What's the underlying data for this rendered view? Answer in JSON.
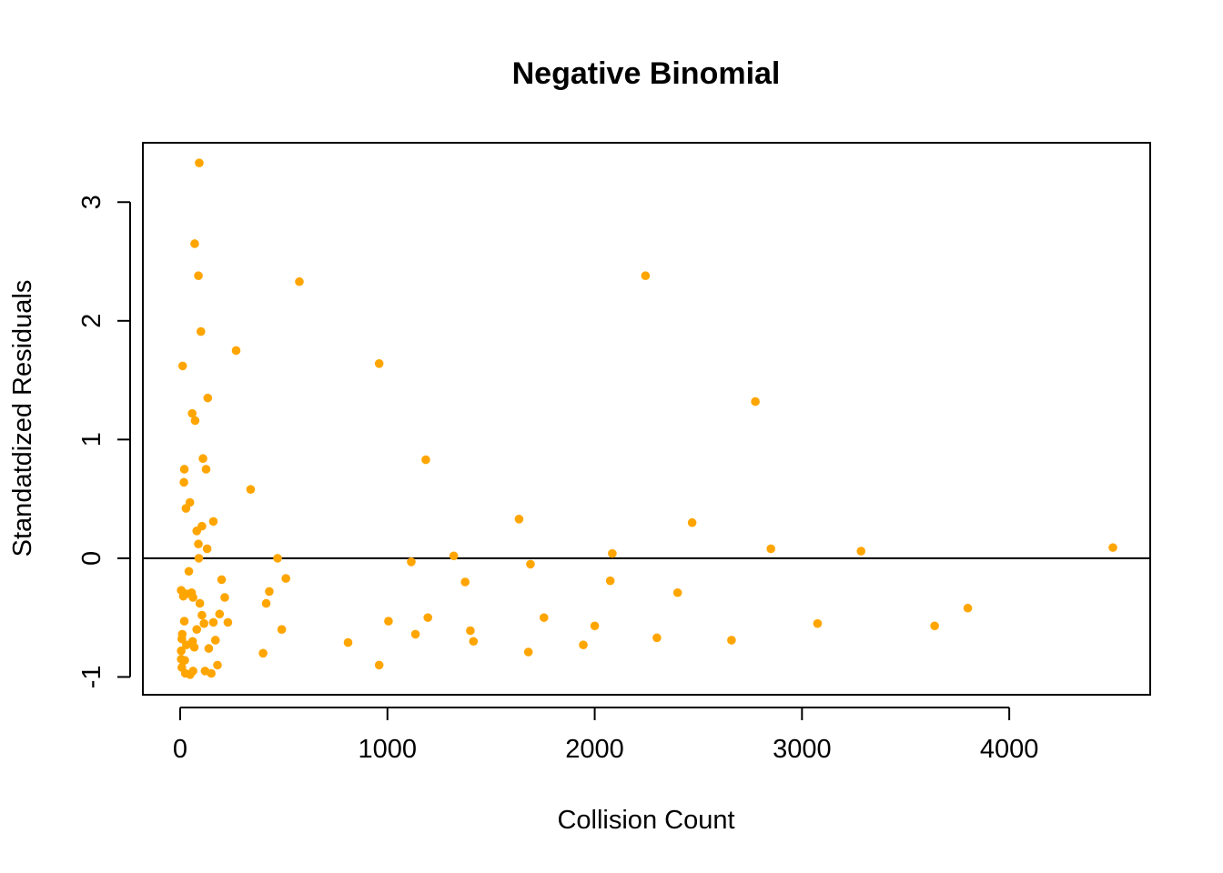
{
  "chart_data": {
    "type": "scatter",
    "title": "Negative Binomial",
    "xlabel": "Collision Count",
    "ylabel": "Standatdized Residuals",
    "xlim": [
      -180,
      4680
    ],
    "ylim": [
      -1.15,
      3.5
    ],
    "x_ticks": [
      0,
      1000,
      2000,
      3000,
      4000
    ],
    "y_ticks": [
      -1,
      0,
      1,
      2,
      3
    ],
    "x_tick_labels": [
      "0",
      "1000",
      "2000",
      "3000",
      "4000"
    ],
    "y_tick_labels": [
      "-1",
      "0",
      "1",
      "2",
      "3"
    ],
    "reference_line_y": 0,
    "point_color": "#FFA500",
    "series": [
      {
        "points": [
          [
            92,
            3.33
          ],
          [
            70,
            2.65
          ],
          [
            88,
            2.38
          ],
          [
            100,
            1.91
          ],
          [
            12,
            1.62
          ],
          [
            133,
            1.35
          ],
          [
            58,
            1.22
          ],
          [
            72,
            1.16
          ],
          [
            110,
            0.84
          ],
          [
            125,
            0.75
          ],
          [
            20,
            0.75
          ],
          [
            18,
            0.64
          ],
          [
            47,
            0.47
          ],
          [
            28,
            0.42
          ],
          [
            160,
            0.31
          ],
          [
            105,
            0.27
          ],
          [
            80,
            0.23
          ],
          [
            88,
            0.12
          ],
          [
            130,
            0.08
          ],
          [
            90,
            0.0
          ],
          [
            42,
            -0.11
          ],
          [
            5,
            -0.27
          ],
          [
            30,
            -0.3
          ],
          [
            55,
            -0.29
          ],
          [
            62,
            -0.33
          ],
          [
            15,
            -0.32
          ],
          [
            95,
            -0.38
          ],
          [
            105,
            -0.48
          ],
          [
            20,
            -0.53
          ],
          [
            115,
            -0.55
          ],
          [
            160,
            -0.54
          ],
          [
            80,
            -0.6
          ],
          [
            10,
            -0.64
          ],
          [
            8,
            -0.68
          ],
          [
            60,
            -0.7
          ],
          [
            170,
            -0.69
          ],
          [
            30,
            -0.73
          ],
          [
            68,
            -0.75
          ],
          [
            138,
            -0.76
          ],
          [
            5,
            -0.78
          ],
          [
            5,
            -0.85
          ],
          [
            22,
            -0.86
          ],
          [
            180,
            -0.9
          ],
          [
            8,
            -0.92
          ],
          [
            62,
            -0.95
          ],
          [
            120,
            -0.95
          ],
          [
            25,
            -0.97
          ],
          [
            150,
            -0.97
          ],
          [
            48,
            -0.98
          ],
          [
            200,
            -0.18
          ],
          [
            215,
            -0.33
          ],
          [
            230,
            -0.54
          ],
          [
            190,
            -0.47
          ],
          [
            270,
            1.75
          ],
          [
            340,
            0.58
          ],
          [
            415,
            -0.38
          ],
          [
            430,
            -0.28
          ],
          [
            400,
            -0.8
          ],
          [
            470,
            0.0
          ],
          [
            510,
            -0.17
          ],
          [
            490,
            -0.6
          ],
          [
            575,
            2.33
          ],
          [
            810,
            -0.71
          ],
          [
            960,
            1.64
          ],
          [
            960,
            -0.9
          ],
          [
            1005,
            -0.53
          ],
          [
            1115,
            -0.03
          ],
          [
            1135,
            -0.64
          ],
          [
            1185,
            0.83
          ],
          [
            1195,
            -0.5
          ],
          [
            1320,
            0.02
          ],
          [
            1375,
            -0.2
          ],
          [
            1400,
            -0.61
          ],
          [
            1415,
            -0.7
          ],
          [
            1635,
            0.33
          ],
          [
            1680,
            -0.79
          ],
          [
            1690,
            -0.05
          ],
          [
            1755,
            -0.5
          ],
          [
            1945,
            -0.73
          ],
          [
            2000,
            -0.57
          ],
          [
            2075,
            -0.19
          ],
          [
            2085,
            0.04
          ],
          [
            2245,
            2.38
          ],
          [
            2300,
            -0.67
          ],
          [
            2400,
            -0.29
          ],
          [
            2470,
            0.3
          ],
          [
            2660,
            -0.69
          ],
          [
            2775,
            1.32
          ],
          [
            2850,
            0.08
          ],
          [
            3075,
            -0.55
          ],
          [
            3285,
            0.06
          ],
          [
            3640,
            -0.57
          ],
          [
            3800,
            -0.42
          ],
          [
            4500,
            0.09
          ]
        ]
      }
    ]
  }
}
